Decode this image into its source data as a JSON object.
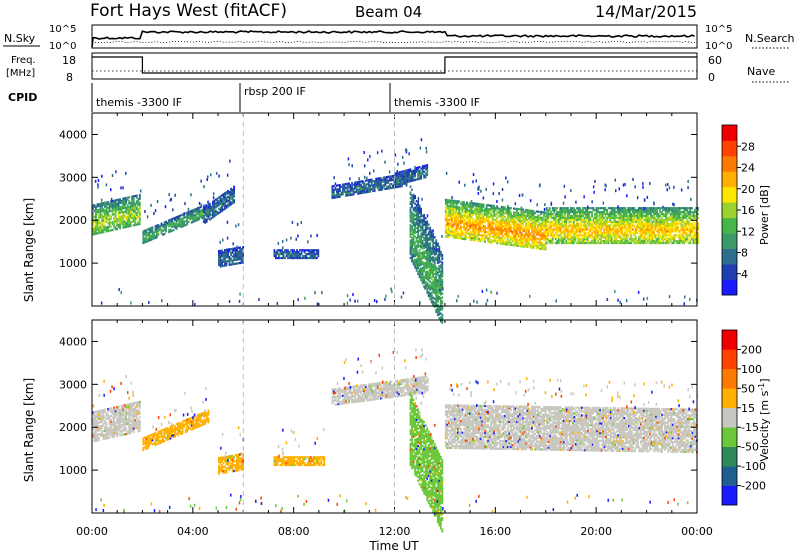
{
  "header": {
    "title": "Fort Hays West (fitACF)",
    "beam": "Beam 04",
    "date": "14/Mar/2015"
  },
  "top_panels": {
    "nsky_label": "N.Sky",
    "nsky_ticks": [
      "10^5",
      "10^0"
    ],
    "nsearch_label": "N.Search",
    "nsearch_ticks": [
      "10^5",
      "10^0"
    ],
    "freq_label_1": "Freq.",
    "freq_label_2": "[MHz]",
    "freq_ticks": [
      "18",
      "8"
    ],
    "nave_label": "Nave",
    "nave_ticks": [
      "60",
      "0"
    ],
    "cpid_label": "CPID",
    "cpid_segments": [
      {
        "label": "themis -3300 IF",
        "start": 0,
        "end": 6
      },
      {
        "label": "rbsp 200 IF",
        "start": 6,
        "end": 12
      },
      {
        "label": "themis -3300 IF",
        "start": 12,
        "end": 24
      }
    ],
    "freq_steps": [
      {
        "start": 0,
        "end": 2,
        "level": "high"
      },
      {
        "start": 2,
        "end": 14,
        "level": "low"
      },
      {
        "start": 14,
        "end": 24,
        "level": "high"
      }
    ]
  },
  "chart_data": [
    {
      "type": "heatmap",
      "panel": "power",
      "ylabel": "Slant Range [km]",
      "ylim": [
        0,
        4500
      ],
      "yticks": [
        "1000",
        "2000",
        "3000",
        "4000"
      ],
      "xlim": [
        0,
        24
      ],
      "xticks": [
        "00:00",
        "04:00",
        "08:00",
        "12:00",
        "16:00",
        "20:00",
        "00:00"
      ],
      "colorbar_label": "Power [dB]",
      "colorbar_ticks": [
        "28",
        "24",
        "20",
        "16",
        "12",
        "8",
        "4"
      ],
      "colors": [
        "#1a1aff",
        "#1f3fb0",
        "#2d6e8c",
        "#3c9a6a",
        "#47b54a",
        "#9bd22e",
        "#ffe600",
        "#ffb000",
        "#ff7a00",
        "#ff4200",
        "#ee0000"
      ],
      "echo_bands": [
        {
          "t0": 0.0,
          "t1": 1.9,
          "r0": 1650,
          "r1": 2350,
          "trend": 250,
          "power": 14
        },
        {
          "t0": 2.0,
          "t1": 4.6,
          "r0": 1450,
          "r1": 1750,
          "trend": 650,
          "power": 10
        },
        {
          "t0": 4.4,
          "t1": 5.6,
          "r0": 1900,
          "r1": 2300,
          "trend": 500,
          "power": 6
        },
        {
          "t0": 5.0,
          "t1": 6.0,
          "r0": 900,
          "r1": 1300,
          "trend": 100,
          "power": 5
        },
        {
          "t0": 7.2,
          "t1": 9.0,
          "r0": 1100,
          "r1": 1300,
          "trend": 0,
          "power": 5
        },
        {
          "t0": 9.5,
          "t1": 12.5,
          "r0": 2500,
          "r1": 2800,
          "trend": 300,
          "power": 6
        },
        {
          "t0": 12.0,
          "t1": 13.3,
          "r0": 2800,
          "r1": 3100,
          "trend": 200,
          "power": 6
        },
        {
          "t0": 12.6,
          "t1": 13.9,
          "r0": 1100,
          "r1": 2800,
          "trend": -1600,
          "power": 10
        },
        {
          "t0": 14.0,
          "t1": 18.0,
          "r0": 1600,
          "r1": 2500,
          "trend": -300,
          "power": 20
        },
        {
          "t0": 18.0,
          "t1": 24.0,
          "r0": 1450,
          "r1": 2300,
          "trend": 0,
          "power": 18
        }
      ]
    },
    {
      "type": "heatmap",
      "panel": "velocity",
      "ylabel": "Slant Range [km]",
      "ylim": [
        0,
        4500
      ],
      "yticks": [
        "1000",
        "2000",
        "3000",
        "4000"
      ],
      "xlim": [
        0,
        24
      ],
      "xticks": [
        "00:00",
        "04:00",
        "08:00",
        "12:00",
        "16:00",
        "20:00",
        "00:00"
      ],
      "xlabel": "Time UT",
      "colorbar_label": "Velocity [m s",
      "colorbar_label_sup": "-1",
      "colorbar_label_end": "]",
      "colorbar_ticks": [
        "200",
        "100",
        "50",
        "15",
        "-15",
        "-50",
        "-100",
        "-200"
      ],
      "colors": [
        "#1a1aff",
        "#1f5f8f",
        "#2f8a5a",
        "#6cc83a",
        "#c8c8c0",
        "#ffb000",
        "#ff7a00",
        "#ff4200",
        "#ee0000"
      ],
      "echo_bands": [
        {
          "t0": 0.0,
          "t1": 1.9,
          "r0": 1650,
          "r1": 2350,
          "trend": 250,
          "vel": "gray"
        },
        {
          "t0": 2.0,
          "t1": 4.6,
          "r0": 1450,
          "r1": 1750,
          "trend": 650,
          "vel": "orange"
        },
        {
          "t0": 5.0,
          "t1": 6.0,
          "r0": 900,
          "r1": 1300,
          "trend": 100,
          "vel": "orange"
        },
        {
          "t0": 7.2,
          "t1": 9.2,
          "r0": 1100,
          "r1": 1300,
          "trend": 0,
          "vel": "orange"
        },
        {
          "t0": 9.5,
          "t1": 13.3,
          "r0": 2500,
          "r1": 2900,
          "trend": 300,
          "vel": "gray"
        },
        {
          "t0": 12.6,
          "t1": 13.9,
          "r0": 1100,
          "r1": 2800,
          "trend": -1600,
          "vel": "green"
        },
        {
          "t0": 14.0,
          "t1": 24.0,
          "r0": 1500,
          "r1": 2500,
          "trend": -100,
          "vel": "gray"
        }
      ]
    }
  ]
}
